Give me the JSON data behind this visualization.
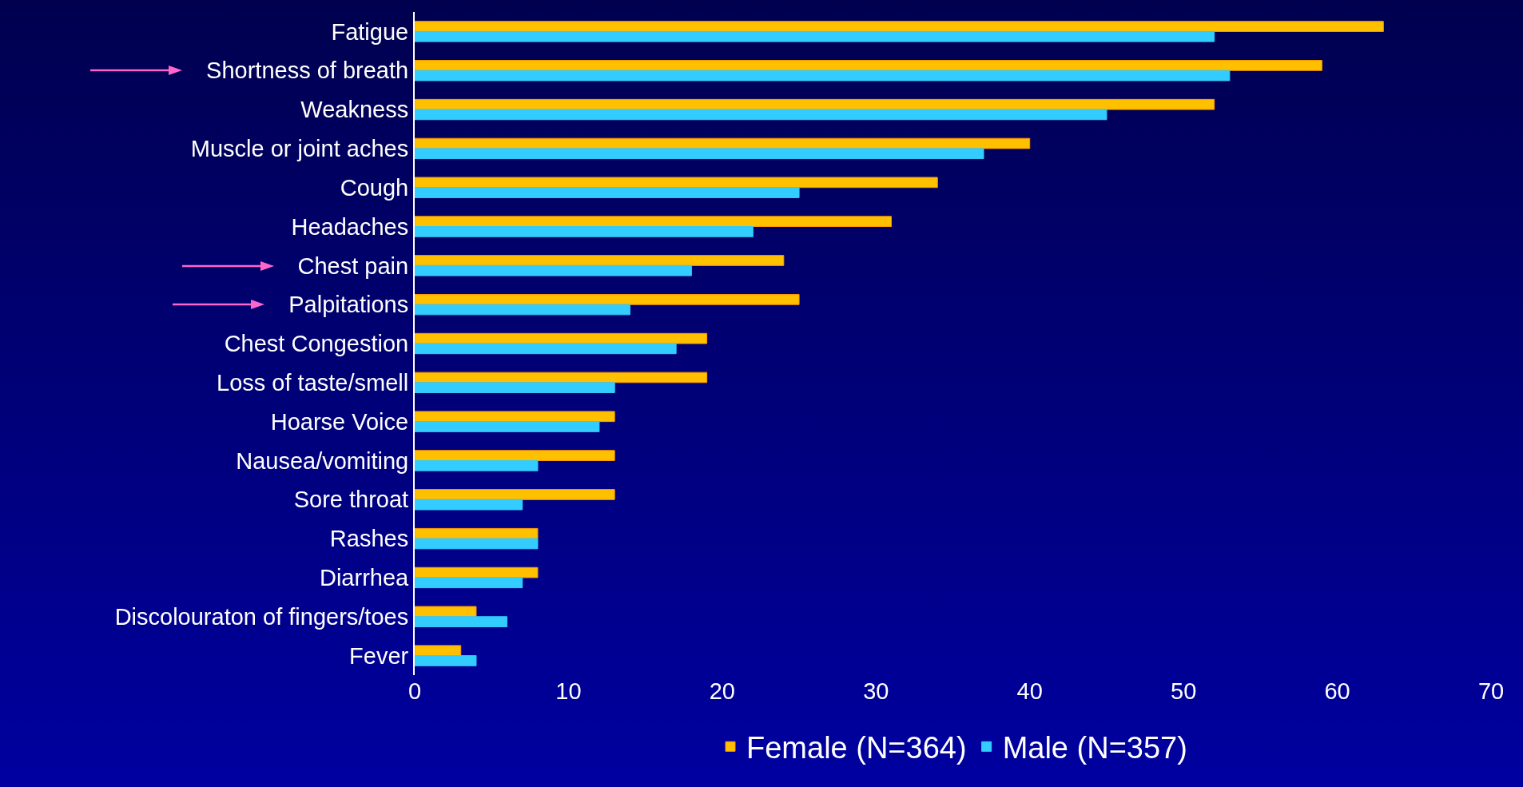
{
  "chart_data": {
    "type": "bar",
    "orientation": "horizontal",
    "categories": [
      "Fatigue",
      "Shortness of breath",
      "Weakness",
      "Muscle or joint aches",
      "Cough",
      "Headaches",
      "Chest pain",
      "Palpitations",
      "Chest Congestion",
      "Loss of taste/smell",
      "Hoarse Voice",
      "Nausea/vomiting",
      "Sore throat",
      "Rashes",
      "Diarrhea",
      "Discolouraton of fingers/toes",
      "Fever"
    ],
    "series": [
      {
        "name": "Female (N=364)",
        "color": "#ffc000",
        "values": [
          63,
          59,
          52,
          40,
          34,
          31,
          24,
          25,
          19,
          19,
          13,
          13,
          13,
          8,
          8,
          4,
          3
        ]
      },
      {
        "name": "Male (N=357)",
        "color": "#33ccff",
        "values": [
          52,
          53,
          45,
          37,
          25,
          22,
          18,
          14,
          17,
          13,
          12,
          8,
          7,
          8,
          7,
          6,
          4
        ]
      }
    ],
    "xlim": [
      0,
      70
    ],
    "xticks": [
      0,
      10,
      20,
      30,
      40,
      50,
      60,
      70
    ],
    "grid": false,
    "legend": "bottom"
  }
}
